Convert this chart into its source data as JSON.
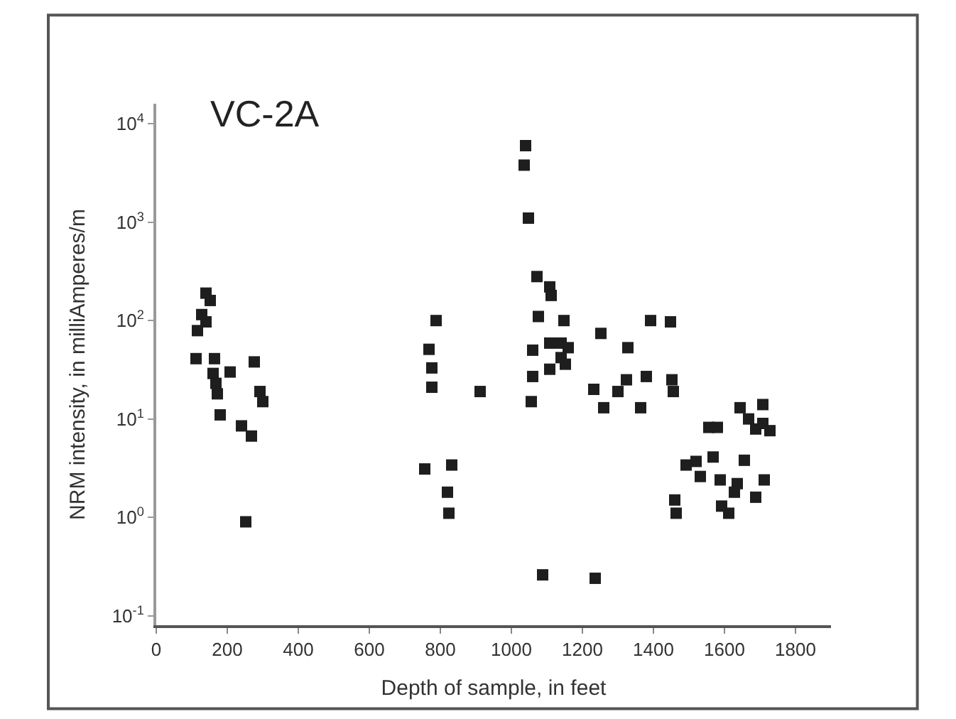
{
  "chart_data": {
    "type": "scatter",
    "title": "VC-2A",
    "xlabel": "Depth of sample, in feet",
    "ylabel": "NRM intensity, in milliAmperes/m",
    "log": "y",
    "marker": "square",
    "xlim": [
      0,
      1900
    ],
    "xticks": [
      0,
      200,
      400,
      600,
      800,
      1000,
      1200,
      1400,
      1600,
      1800
    ],
    "ylim": [
      0.08,
      16000
    ],
    "yticks": [
      {
        "value": 0.1,
        "label": "10$^{-1}$"
      },
      {
        "value": 1,
        "label": "10$^{0}$"
      },
      {
        "value": 10,
        "label": "10$^{1}$"
      },
      {
        "value": 100,
        "label": "10$^{2}$"
      },
      {
        "value": 1000,
        "label": "10$^{3}$"
      },
      {
        "value": 10000,
        "label": "10$^{4}$"
      }
    ],
    "series": [
      {
        "color": "#1e1e1e",
        "x": [
          140,
          152,
          128,
          140,
          116,
          112,
          164,
          160,
          208,
          168,
          172,
          276,
          292,
          300,
          180,
          240,
          268,
          252,
          788,
          768,
          776,
          776,
          756,
          832,
          820,
          824,
          912,
          1040,
          1036,
          1048,
          1072,
          1108,
          1112,
          1076,
          1148,
          1060,
          1108,
          1140,
          1160,
          1140,
          1152,
          1108,
          1060,
          1056,
          1088,
          1236,
          1252,
          1232,
          1300,
          1324,
          1380,
          1260,
          1364,
          1328,
          1392,
          1448,
          1452,
          1456,
          1556,
          1580,
          1644,
          1708,
          1668,
          1708,
          1728,
          1688,
          1492,
          1520,
          1568,
          1532,
          1588,
          1636,
          1656,
          1712,
          1628,
          1688,
          1460,
          1464,
          1592,
          1612
        ],
        "values": [
          190,
          160,
          115,
          97,
          79,
          41,
          41,
          29,
          30,
          23,
          18,
          38,
          19,
          15,
          11,
          8.5,
          6.7,
          0.9,
          100,
          51,
          33,
          21,
          3.1,
          3.4,
          1.8,
          1.1,
          19,
          6000,
          3800,
          1100,
          280,
          220,
          180,
          110,
          100,
          50,
          59,
          59,
          53,
          42,
          36,
          32,
          27,
          15,
          0.26,
          0.24,
          74,
          20,
          19,
          25,
          27,
          13,
          13,
          53,
          100,
          97,
          25,
          19,
          8.2,
          8.2,
          13,
          14,
          10,
          9,
          7.6,
          7.9,
          3.4,
          3.7,
          4.1,
          2.6,
          2.4,
          2.2,
          3.8,
          2.4,
          1.8,
          1.6,
          1.5,
          1.1,
          1.3,
          1.1
        ]
      }
    ]
  }
}
